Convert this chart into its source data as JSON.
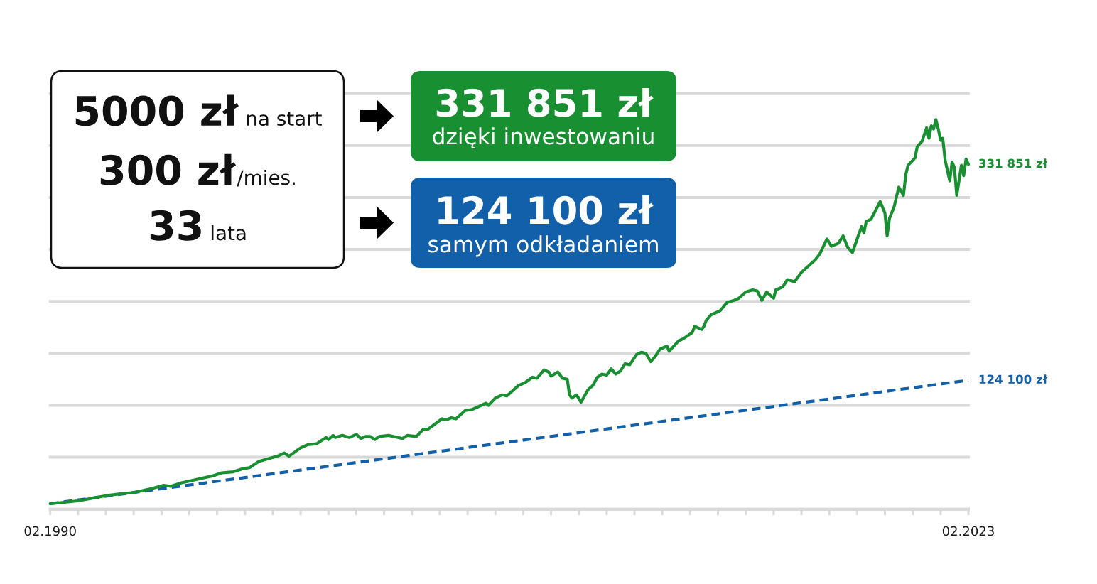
{
  "chart_data": {
    "type": "line",
    "series": [
      {
        "color": "#188f30",
        "line_style": "solid",
        "x": [
          "1990-02",
          "1991-02",
          "1992-02",
          "1992-09",
          "1993-02",
          "1993-10",
          "1994-03",
          "1994-06",
          "1994-10",
          "1995-08",
          "1995-12",
          "1996-04",
          "1996-09",
          "1997-01",
          "1997-04",
          "1997-08",
          "1998-04",
          "1998-07",
          "1998-09",
          "1999-02",
          "1999-05",
          "1999-09",
          "2000-01",
          "2000-02",
          "2000-04",
          "2000-05",
          "2000-08",
          "2000-11",
          "2001-02",
          "2001-04",
          "2001-06",
          "2001-08",
          "2001-10",
          "2001-12",
          "2002-04",
          "2002-08",
          "2002-10",
          "2002-12",
          "2003-04",
          "2003-07",
          "2003-09",
          "2003-12",
          "2004-03",
          "2004-05",
          "2004-07",
          "2004-09",
          "2005-01",
          "2005-04",
          "2005-10",
          "2005-11",
          "2006-02",
          "2006-05",
          "2006-07",
          "2006-12",
          "2007-03",
          "2007-06",
          "2007-08",
          "2007-11",
          "2008-01",
          "2008-02",
          "2008-05",
          "2008-07",
          "2008-09",
          "2008-10",
          "2008-11",
          "2009-01",
          "2009-03",
          "2009-06",
          "2009-08",
          "2009-10",
          "2009-12",
          "2010-02",
          "2010-04",
          "2010-06",
          "2010-08",
          "2010-10",
          "2010-12",
          "2011-03",
          "2011-05",
          "2011-07",
          "2011-09",
          "2011-11",
          "2012-01",
          "2012-04",
          "2012-05",
          "2012-09",
          "2012-11",
          "2013-03",
          "2013-04",
          "2013-07",
          "2013-08",
          "2013-09",
          "2013-11",
          "2013-12",
          "2014-03",
          "2014-06",
          "2014-09",
          "2014-11",
          "2015-02",
          "2015-05",
          "2015-07",
          "2015-09",
          "2015-11",
          "2016-02",
          "2016-03",
          "2016-06",
          "2016-08",
          "2016-11",
          "2017-02",
          "2017-06",
          "2017-08",
          "2017-10",
          "2018-01",
          "2018-03",
          "2018-06",
          "2018-08",
          "2018-10",
          "2018-12",
          "2019-02",
          "2019-04",
          "2019-05",
          "2019-06",
          "2019-08",
          "2019-12",
          "2020-02",
          "2020-03",
          "2020-04",
          "2020-06",
          "2020-08",
          "2020-10",
          "2020-11",
          "2020-12",
          "2021-03",
          "2021-04",
          "2021-06",
          "2021-08",
          "2021-09",
          "2021-10",
          "2021-11",
          "2021-12",
          "2022-01",
          "2022-02",
          "2022-03",
          "2022-04",
          "2022-06",
          "2022-07",
          "2022-08",
          "2022-09",
          "2022-11",
          "2022-12",
          "2023-01",
          "2023-02"
        ],
        "values": [
          5300,
          8000,
          13000,
          15000,
          16000,
          20000,
          23000,
          22000,
          25000,
          30000,
          32000,
          35000,
          36000,
          39000,
          40000,
          46000,
          51000,
          54000,
          51000,
          59000,
          62000,
          63000,
          69000,
          67000,
          71000,
          69000,
          71000,
          69000,
          72000,
          68000,
          70000,
          70000,
          67000,
          70000,
          71000,
          69000,
          68000,
          71000,
          70000,
          77000,
          77000,
          82000,
          87000,
          86000,
          88000,
          87000,
          95000,
          96000,
          102000,
          100000,
          107000,
          110000,
          109000,
          119000,
          122000,
          127000,
          126000,
          134000,
          132000,
          128000,
          132000,
          126000,
          125000,
          110000,
          107000,
          110000,
          103000,
          115000,
          119000,
          127000,
          130000,
          129000,
          135000,
          130000,
          133000,
          140000,
          139000,
          149000,
          151000,
          150000,
          142000,
          147000,
          154000,
          157000,
          152000,
          162000,
          164000,
          170000,
          176000,
          173000,
          176000,
          182000,
          187000,
          188000,
          191000,
          199000,
          201000,
          203000,
          209000,
          211000,
          210000,
          201000,
          209000,
          203000,
          211000,
          214000,
          221000,
          219000,
          228000,
          236000,
          240000,
          246000,
          260000,
          253000,
          256000,
          263000,
          252000,
          247000,
          260000,
          272000,
          266000,
          277000,
          279000,
          296000,
          285000,
          263000,
          280000,
          291000,
          310000,
          302000,
          322000,
          331000,
          338000,
          349000,
          354000,
          367000,
          357000,
          369000,
          366000,
          375000,
          366000,
          355000,
          357000,
          336000,
          316000,
          334000,
          329000,
          302000,
          331000,
          321000,
          337000,
          331851
        ],
        "value_labels": [
          null,
          null,
          null,
          null,
          null,
          null,
          null,
          null,
          null,
          null,
          null,
          null,
          null,
          null,
          null,
          null,
          null,
          null,
          null,
          null,
          null,
          null,
          null,
          null,
          null,
          null,
          null,
          null,
          null,
          null,
          null,
          null,
          null,
          null,
          null,
          null,
          null,
          null,
          null,
          null,
          null,
          null,
          null,
          null,
          null,
          null,
          null,
          null,
          null,
          null,
          null,
          null,
          null,
          null,
          null,
          null,
          null,
          null,
          null,
          null,
          null,
          null,
          null,
          null,
          null,
          null,
          null,
          null,
          null,
          null,
          null,
          null,
          null,
          null,
          null,
          null,
          null,
          null,
          null,
          null,
          null,
          null,
          null,
          null,
          null,
          null,
          null,
          null,
          null,
          null,
          null,
          null,
          null,
          null,
          null,
          null,
          null,
          null,
          null,
          null,
          null,
          null,
          null,
          null,
          null,
          null,
          null,
          null,
          null,
          null,
          null,
          null,
          null,
          null,
          null,
          null,
          null,
          null,
          null,
          null,
          null,
          null,
          null,
          null,
          null,
          null,
          null,
          null,
          null,
          null,
          null,
          null,
          null,
          null,
          null,
          null,
          null,
          null,
          null,
          null,
          null,
          null,
          null,
          null,
          null,
          null,
          null,
          null,
          null,
          null,
          null,
          "331 851 zł"
        ]
      },
      {
        "color": "#1260aa",
        "line_style": "dashed",
        "x": [
          "1990-02",
          "2023-02"
        ],
        "values": [
          5300,
          124100
        ],
        "value_labels": [
          null,
          "124 100 zł"
        ]
      }
    ],
    "xlim": [
      "1990-02",
      "2023-02"
    ],
    "xticks": [
      {
        "value": "1990-02",
        "label": "02.1990"
      },
      {
        "value": "1991-02",
        "label": null
      },
      {
        "value": "1992-02",
        "label": null
      },
      {
        "value": "1993-02",
        "label": null
      },
      {
        "value": "1994-02",
        "label": null
      },
      {
        "value": "1995-02",
        "label": null
      },
      {
        "value": "1996-02",
        "label": null
      },
      {
        "value": "1997-02",
        "label": null
      },
      {
        "value": "1998-02",
        "label": null
      },
      {
        "value": "1999-02",
        "label": null
      },
      {
        "value": "2000-02",
        "label": null
      },
      {
        "value": "2001-02",
        "label": null
      },
      {
        "value": "2002-02",
        "label": null
      },
      {
        "value": "2003-02",
        "label": null
      },
      {
        "value": "2004-02",
        "label": null
      },
      {
        "value": "2005-02",
        "label": null
      },
      {
        "value": "2006-02",
        "label": null
      },
      {
        "value": "2007-02",
        "label": null
      },
      {
        "value": "2008-02",
        "label": null
      },
      {
        "value": "2009-02",
        "label": null
      },
      {
        "value": "2010-02",
        "label": null
      },
      {
        "value": "2011-02",
        "label": null
      },
      {
        "value": "2012-02",
        "label": null
      },
      {
        "value": "2013-02",
        "label": null
      },
      {
        "value": "2014-02",
        "label": null
      },
      {
        "value": "2015-02",
        "label": null
      },
      {
        "value": "2016-02",
        "label": null
      },
      {
        "value": "2017-02",
        "label": null
      },
      {
        "value": "2018-02",
        "label": null
      },
      {
        "value": "2019-02",
        "label": null
      },
      {
        "value": "2020-02",
        "label": null
      },
      {
        "value": "2021-02",
        "label": null
      },
      {
        "value": "2022-02",
        "label": null
      },
      {
        "value": "2023-02",
        "label": "02.2023"
      }
    ],
    "ylim": [
      0,
      400000
    ],
    "yticks": [
      {
        "value": 0,
        "label": null
      },
      {
        "value": 50000,
        "label": null
      },
      {
        "value": 100000,
        "label": null
      },
      {
        "value": 150000,
        "label": null
      },
      {
        "value": 200000,
        "label": null
      },
      {
        "value": 250000,
        "label": null
      },
      {
        "value": 300000,
        "label": null
      },
      {
        "value": 350000,
        "label": null
      },
      {
        "value": 400000,
        "label": null
      }
    ],
    "grid": "y",
    "tick_labels": "x",
    "annotations": [
      "5000 zł",
      "na start",
      "300 zł",
      "/mies.",
      "33",
      "lata",
      "331 851 zł",
      "dzięki inwestowaniu",
      "124 100 zł",
      "samym odkładaniem"
    ]
  }
}
